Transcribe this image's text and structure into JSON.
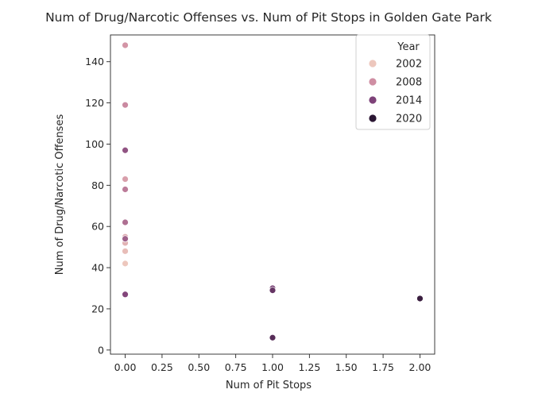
{
  "chart_data": {
    "type": "scatter",
    "title": "Num of Drug/Narcotic Offenses vs. Num of Pit Stops in Golden Gate Park",
    "xlabel": "Num of Pit Stops",
    "ylabel": "Num of Drug/Narcotic Offenses",
    "xlim": [
      -0.1,
      2.1
    ],
    "ylim": [
      -2,
      153
    ],
    "xticks": [
      0.0,
      0.25,
      0.5,
      0.75,
      1.0,
      1.25,
      1.5,
      1.75,
      2.0
    ],
    "xtick_labels": [
      "0.00",
      "0.25",
      "0.50",
      "0.75",
      "1.00",
      "1.25",
      "1.50",
      "1.75",
      "2.00"
    ],
    "yticks": [
      0,
      20,
      40,
      60,
      80,
      100,
      120,
      140
    ],
    "ytick_labels": [
      "0",
      "20",
      "40",
      "60",
      "80",
      "100",
      "120",
      "140"
    ],
    "grid": false,
    "legend": {
      "title": "Year",
      "placement": "top-right",
      "entries": [
        {
          "label": "2002",
          "color": "#edc7bd"
        },
        {
          "label": "2008",
          "color": "#cf8ea3"
        },
        {
          "label": "2014",
          "color": "#7e4279"
        },
        {
          "label": "2020",
          "color": "#2b1633"
        }
      ]
    },
    "hue_range": {
      "min_year": 2003,
      "max_year": 2020
    },
    "points": [
      {
        "x": 0,
        "y": 42,
        "year": 2003
      },
      {
        "x": 0,
        "y": 48,
        "year": 2004
      },
      {
        "x": 0,
        "y": 52,
        "year": 2005
      },
      {
        "x": 0,
        "y": 55,
        "year": 2006
      },
      {
        "x": 0,
        "y": 83,
        "year": 2007
      },
      {
        "x": 0,
        "y": 148,
        "year": 2008
      },
      {
        "x": 0,
        "y": 119,
        "year": 2009
      },
      {
        "x": 0,
        "y": 78,
        "year": 2010
      },
      {
        "x": 0,
        "y": 62,
        "year": 2011
      },
      {
        "x": 0,
        "y": 54,
        "year": 2012
      },
      {
        "x": 0,
        "y": 97,
        "year": 2013
      },
      {
        "x": 0,
        "y": 27,
        "year": 2014
      },
      {
        "x": 1,
        "y": 30,
        "year": 2015
      },
      {
        "x": 1,
        "y": 29,
        "year": 2016
      },
      {
        "x": 1,
        "y": 6,
        "year": 2017
      },
      {
        "x": 2,
        "y": 25,
        "year": 2019
      }
    ]
  }
}
